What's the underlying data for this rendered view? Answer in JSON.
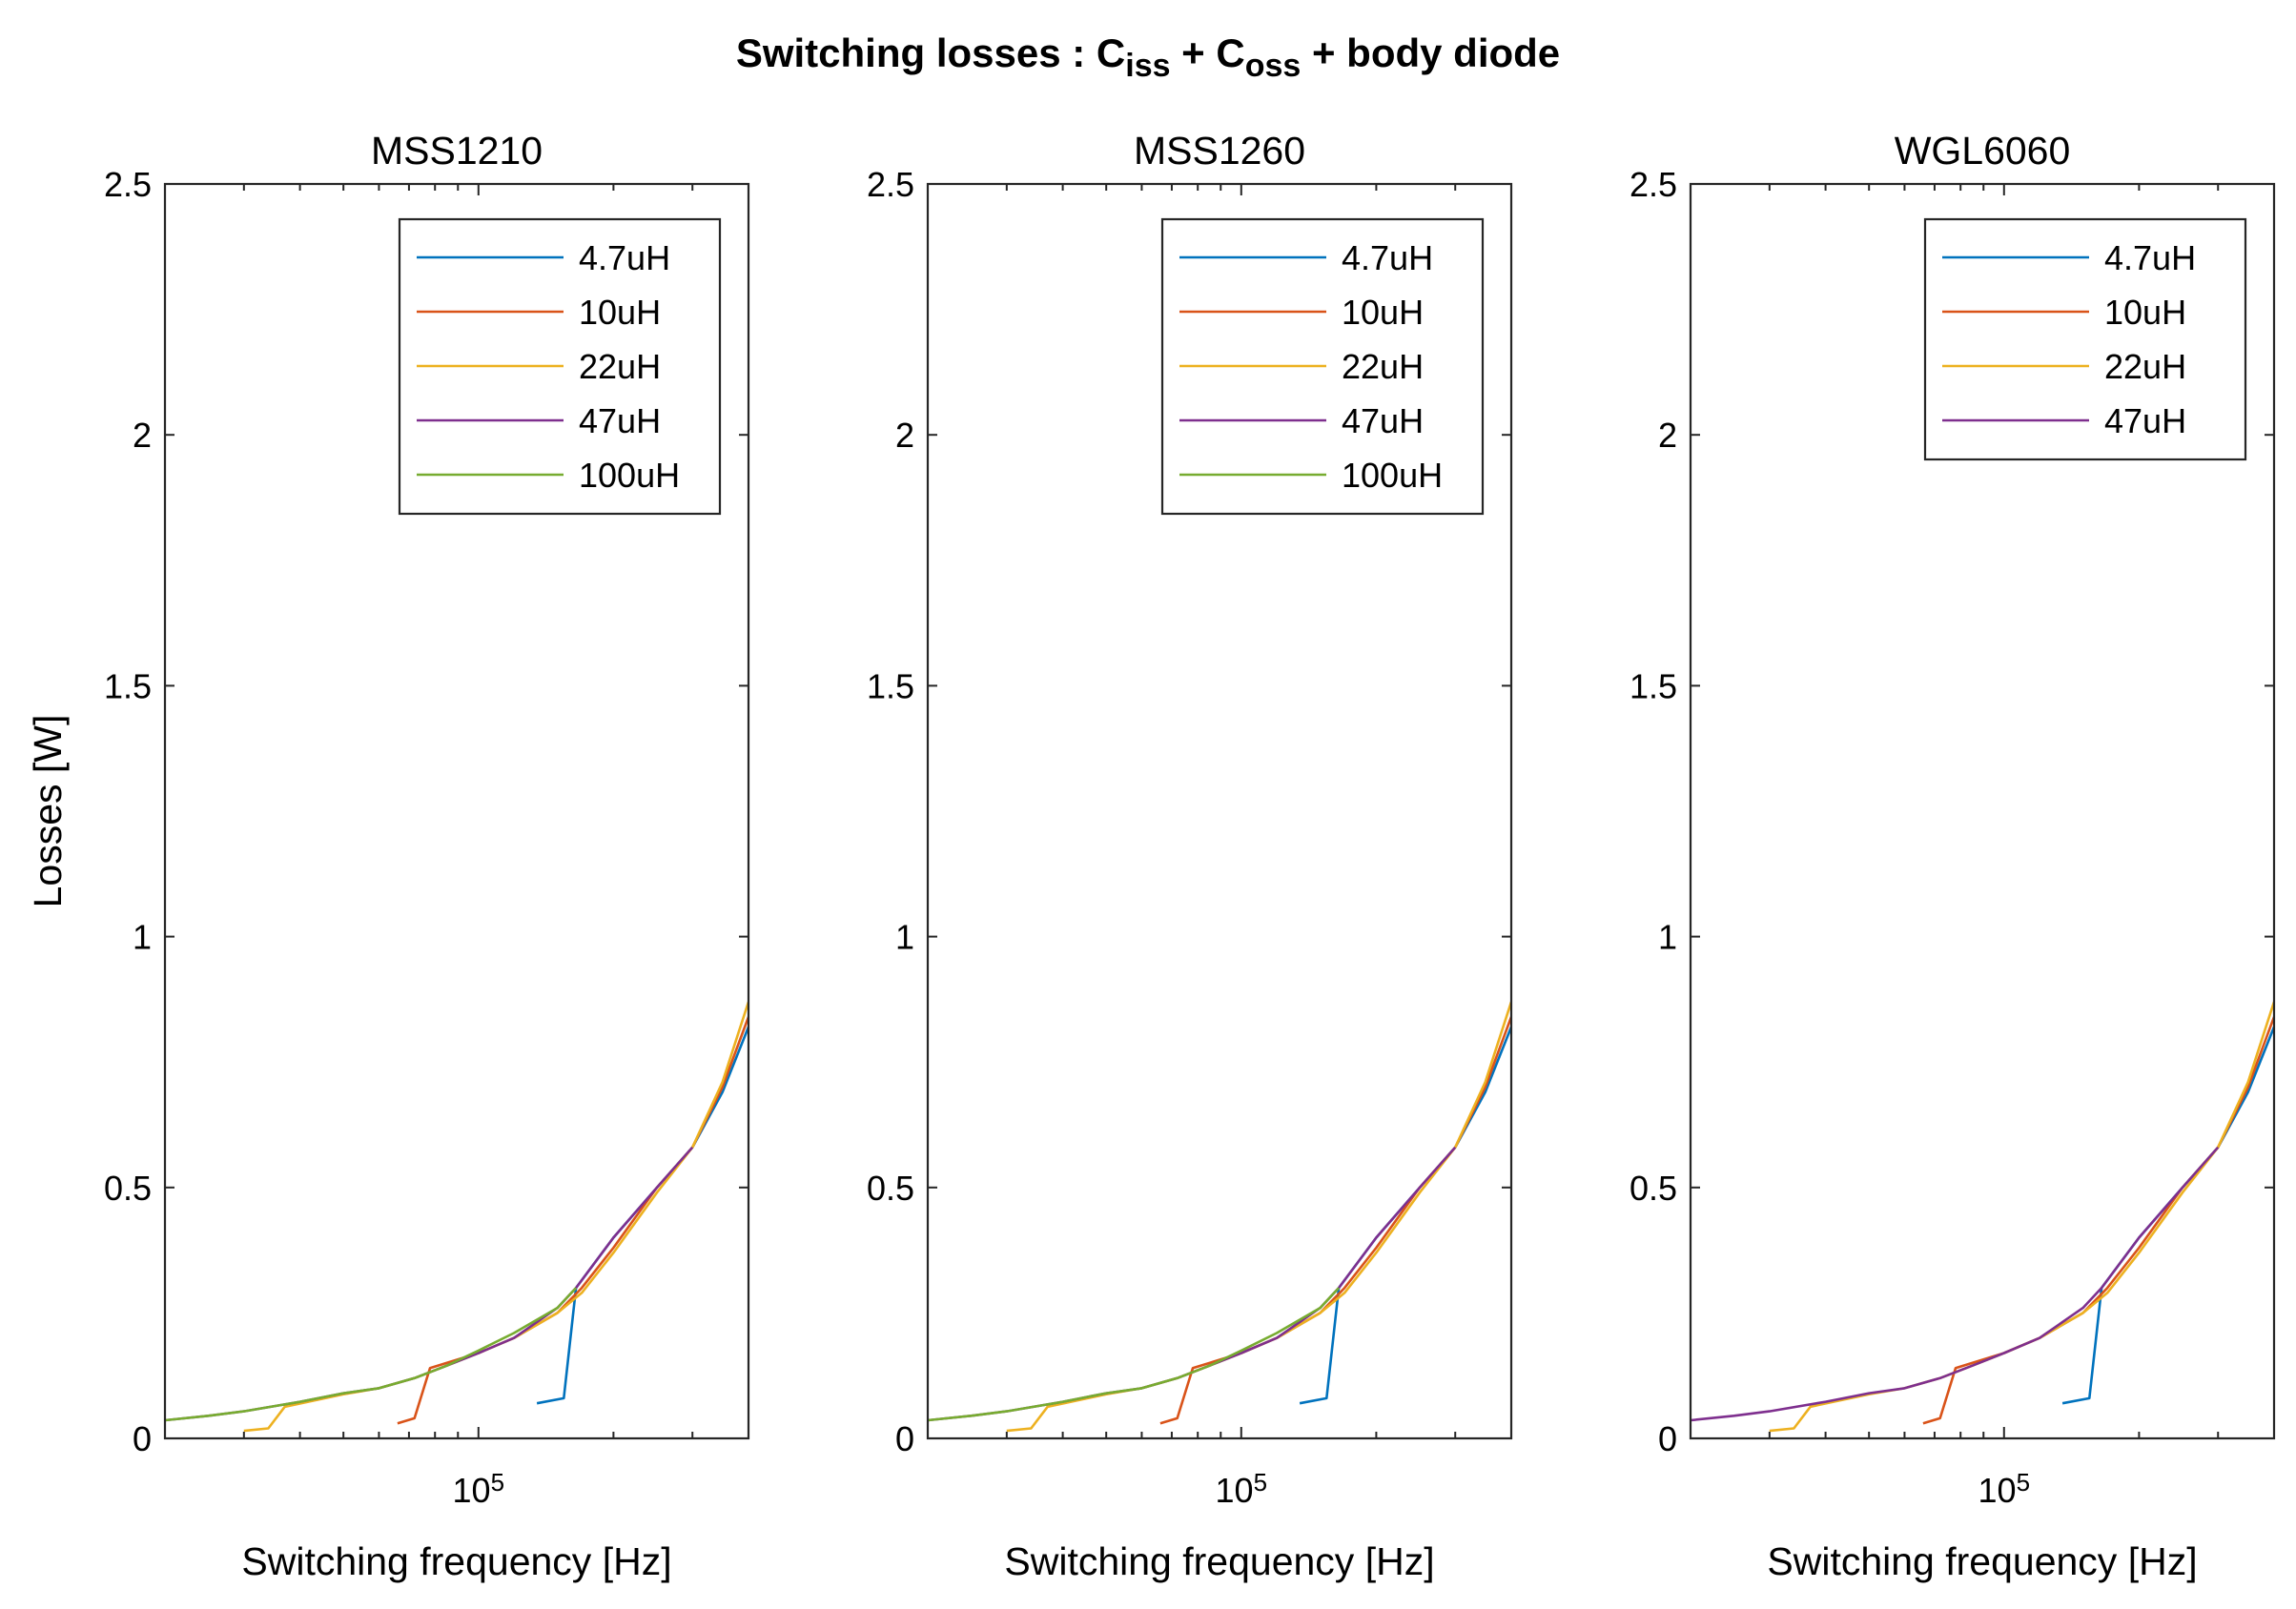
{
  "figure_title": {
    "parts": [
      {
        "text": "Switching losses : C",
        "sub": false
      },
      {
        "text": "iss",
        "sub": true
      },
      {
        "text": " + C",
        "sub": false
      },
      {
        "text": "oss",
        "sub": true
      },
      {
        "text": " + body diode",
        "sub": false
      }
    ]
  },
  "colors": {
    "4.7uH": "#0072BD",
    "10uH": "#D95319",
    "22uH": "#EDB120",
    "47uH": "#7E2F8E",
    "100uH": "#77AC30"
  },
  "chart_data": [
    {
      "type": "line",
      "title": "MSS1210",
      "xlabel": "Switching frequency [Hz]",
      "ylabel": "Losses [W]",
      "x_scale": "log",
      "xlim": [
        20000,
        400000
      ],
      "ylim": [
        0,
        2.5
      ],
      "x_ticks": [
        {
          "value": 100000,
          "base": "10",
          "exp": "5"
        }
      ],
      "y_ticks": [
        "0",
        "0.5",
        "1",
        "1.5",
        "2",
        "2.5"
      ],
      "grid": false,
      "legend_position": "top-right",
      "series": [
        {
          "name": "4.7uH",
          "x": [
            135000,
            155000,
            165000,
            200000,
            250000,
            300000,
            350000,
            400000
          ],
          "y": [
            0.07,
            0.08,
            0.3,
            0.4,
            0.5,
            0.58,
            0.69,
            0.82
          ]
        },
        {
          "name": "10uH",
          "x": [
            66000,
            72000,
            78000,
            100000,
            120000,
            150000,
            170000,
            200000,
            250000,
            300000,
            350000,
            400000
          ],
          "y": [
            0.03,
            0.04,
            0.14,
            0.17,
            0.2,
            0.25,
            0.3,
            0.38,
            0.5,
            0.58,
            0.7,
            0.84
          ]
        },
        {
          "name": "22uH",
          "x": [
            30000,
            34000,
            37000,
            50000,
            60000,
            72000,
            85000,
            100000,
            120000,
            150000,
            170000,
            200000,
            250000,
            300000,
            350000,
            400000
          ],
          "y": [
            0.015,
            0.02,
            0.063,
            0.088,
            0.1,
            0.12,
            0.145,
            0.17,
            0.2,
            0.25,
            0.29,
            0.37,
            0.49,
            0.58,
            0.71,
            0.87
          ]
        },
        {
          "name": "47uH",
          "x": [
            20000,
            25000,
            30000,
            40000,
            50000,
            60000,
            72000,
            85000,
            100000,
            120000,
            150000,
            165000,
            200000,
            250000,
            300000
          ],
          "y": [
            0.036,
            0.045,
            0.054,
            0.073,
            0.09,
            0.1,
            0.12,
            0.145,
            0.17,
            0.2,
            0.26,
            0.3,
            0.4,
            0.5,
            0.58
          ]
        },
        {
          "name": "100uH",
          "x": [
            20000,
            25000,
            30000,
            40000,
            50000,
            60000,
            72000,
            85000,
            100000,
            120000,
            150000,
            165000
          ],
          "y": [
            0.036,
            0.045,
            0.054,
            0.073,
            0.09,
            0.1,
            0.12,
            0.145,
            0.175,
            0.21,
            0.26,
            0.3
          ]
        }
      ]
    },
    {
      "type": "line",
      "title": "MSS1260",
      "xlabel": "Switching frequency [Hz]",
      "ylabel": "",
      "x_scale": "log",
      "xlim": [
        20000,
        400000
      ],
      "ylim": [
        0,
        2.5
      ],
      "x_ticks": [
        {
          "value": 100000,
          "base": "10",
          "exp": "5"
        }
      ],
      "y_ticks": [
        "0",
        "0.5",
        "1",
        "1.5",
        "2",
        "2.5"
      ],
      "grid": false,
      "legend_position": "top-right",
      "series": [
        {
          "name": "4.7uH",
          "x": [
            135000,
            155000,
            165000,
            200000,
            250000,
            300000,
            350000,
            400000
          ],
          "y": [
            0.07,
            0.08,
            0.3,
            0.4,
            0.5,
            0.58,
            0.69,
            0.82
          ]
        },
        {
          "name": "10uH",
          "x": [
            66000,
            72000,
            78000,
            100000,
            120000,
            150000,
            170000,
            200000,
            250000,
            300000,
            350000,
            400000
          ],
          "y": [
            0.03,
            0.04,
            0.14,
            0.17,
            0.2,
            0.25,
            0.3,
            0.38,
            0.5,
            0.58,
            0.7,
            0.84
          ]
        },
        {
          "name": "22uH",
          "x": [
            30000,
            34000,
            37000,
            50000,
            60000,
            72000,
            85000,
            100000,
            120000,
            150000,
            170000,
            200000,
            250000,
            300000,
            350000,
            400000
          ],
          "y": [
            0.015,
            0.02,
            0.063,
            0.088,
            0.1,
            0.12,
            0.145,
            0.17,
            0.2,
            0.25,
            0.29,
            0.37,
            0.49,
            0.58,
            0.71,
            0.87
          ]
        },
        {
          "name": "47uH",
          "x": [
            20000,
            25000,
            30000,
            40000,
            50000,
            60000,
            72000,
            85000,
            100000,
            120000,
            150000,
            165000,
            200000,
            250000,
            300000
          ],
          "y": [
            0.036,
            0.045,
            0.054,
            0.073,
            0.09,
            0.1,
            0.12,
            0.145,
            0.17,
            0.2,
            0.26,
            0.3,
            0.4,
            0.5,
            0.58
          ]
        },
        {
          "name": "100uH",
          "x": [
            20000,
            25000,
            30000,
            40000,
            50000,
            60000,
            72000,
            85000,
            100000,
            120000,
            150000,
            165000
          ],
          "y": [
            0.036,
            0.045,
            0.054,
            0.073,
            0.09,
            0.1,
            0.12,
            0.145,
            0.175,
            0.21,
            0.26,
            0.3
          ]
        }
      ]
    },
    {
      "type": "line",
      "title": "WGL6060",
      "xlabel": "Switching frequency [Hz]",
      "ylabel": "",
      "x_scale": "log",
      "xlim": [
        20000,
        400000
      ],
      "ylim": [
        0,
        2.5
      ],
      "x_ticks": [
        {
          "value": 100000,
          "base": "10",
          "exp": "5"
        }
      ],
      "y_ticks": [
        "0",
        "0.5",
        "1",
        "1.5",
        "2",
        "2.5"
      ],
      "grid": false,
      "legend_position": "top-right",
      "series": [
        {
          "name": "4.7uH",
          "x": [
            135000,
            155000,
            165000,
            200000,
            250000,
            300000,
            350000,
            400000
          ],
          "y": [
            0.07,
            0.08,
            0.3,
            0.4,
            0.5,
            0.58,
            0.69,
            0.82
          ]
        },
        {
          "name": "10uH",
          "x": [
            66000,
            72000,
            78000,
            100000,
            120000,
            150000,
            170000,
            200000,
            250000,
            300000,
            350000,
            400000
          ],
          "y": [
            0.03,
            0.04,
            0.14,
            0.17,
            0.2,
            0.25,
            0.3,
            0.38,
            0.5,
            0.58,
            0.7,
            0.84
          ]
        },
        {
          "name": "22uH",
          "x": [
            30000,
            34000,
            37000,
            50000,
            60000,
            72000,
            85000,
            100000,
            120000,
            150000,
            170000,
            200000,
            250000,
            300000,
            350000,
            400000
          ],
          "y": [
            0.015,
            0.02,
            0.063,
            0.088,
            0.1,
            0.12,
            0.145,
            0.17,
            0.2,
            0.25,
            0.29,
            0.37,
            0.49,
            0.58,
            0.71,
            0.87
          ]
        },
        {
          "name": "47uH",
          "x": [
            20000,
            25000,
            30000,
            40000,
            50000,
            60000,
            72000,
            85000,
            100000,
            120000,
            150000,
            165000,
            200000,
            250000,
            300000
          ],
          "y": [
            0.036,
            0.045,
            0.054,
            0.073,
            0.09,
            0.1,
            0.12,
            0.145,
            0.17,
            0.2,
            0.26,
            0.3,
            0.4,
            0.5,
            0.58
          ]
        }
      ]
    }
  ]
}
